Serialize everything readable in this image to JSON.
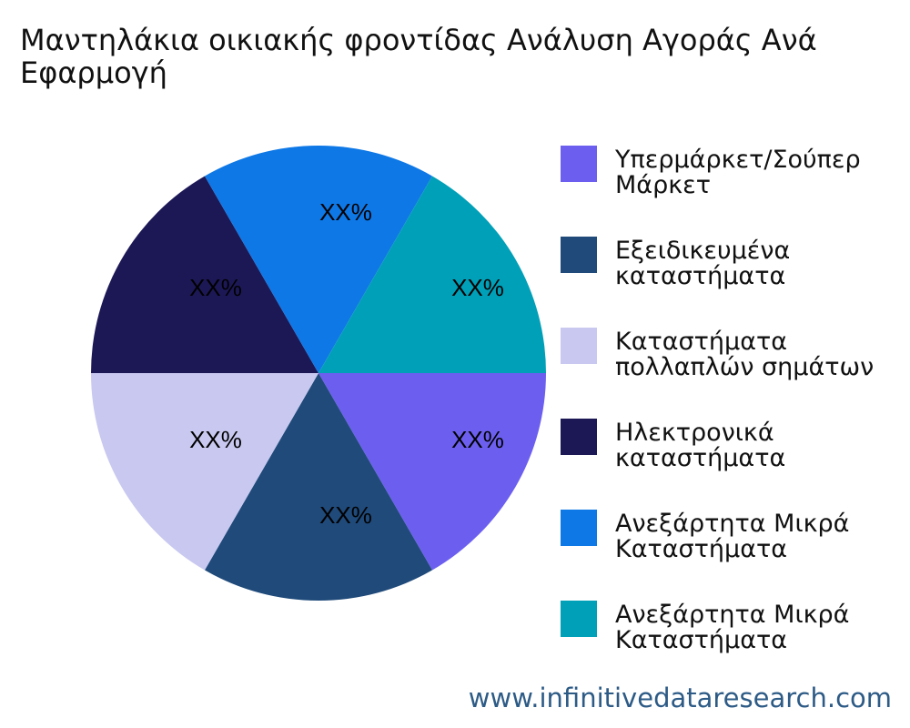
{
  "chart_data": {
    "type": "pie",
    "title": "Μαντηλάκια οικιακής φροντίδας Ανάλυση Αγοράς Ανά Εφαρμογή",
    "slices": [
      {
        "name": "Υπερμάρκετ/Σούπερ Μάρκετ",
        "value": 16.67,
        "label": "XX%",
        "color": "#6c5ff0"
      },
      {
        "name": "Εξειδικευμένα καταστήματα",
        "value": 16.67,
        "label": "XX%",
        "color": "#1f4a7a"
      },
      {
        "name": "Καταστήματα πολλαπλών σημάτων",
        "value": 16.67,
        "label": "XX%",
        "color": "#c8c8f0"
      },
      {
        "name": "Ηλεκτρονικά καταστήματα",
        "value": 16.67,
        "label": "XX%",
        "color": "#1c1856"
      },
      {
        "name": "Ανεξάρτητα Μικρά Καταστήματα",
        "value": 16.67,
        "label": "XX%",
        "color": "#0e78e6"
      },
      {
        "name": "Ανεξάρτητα Μικρά Καταστήματα",
        "value": 16.67,
        "label": "XX%",
        "color": "#00a0b8"
      }
    ],
    "legend_position": "right"
  },
  "watermark": "www.infinitivedataresearch.com"
}
